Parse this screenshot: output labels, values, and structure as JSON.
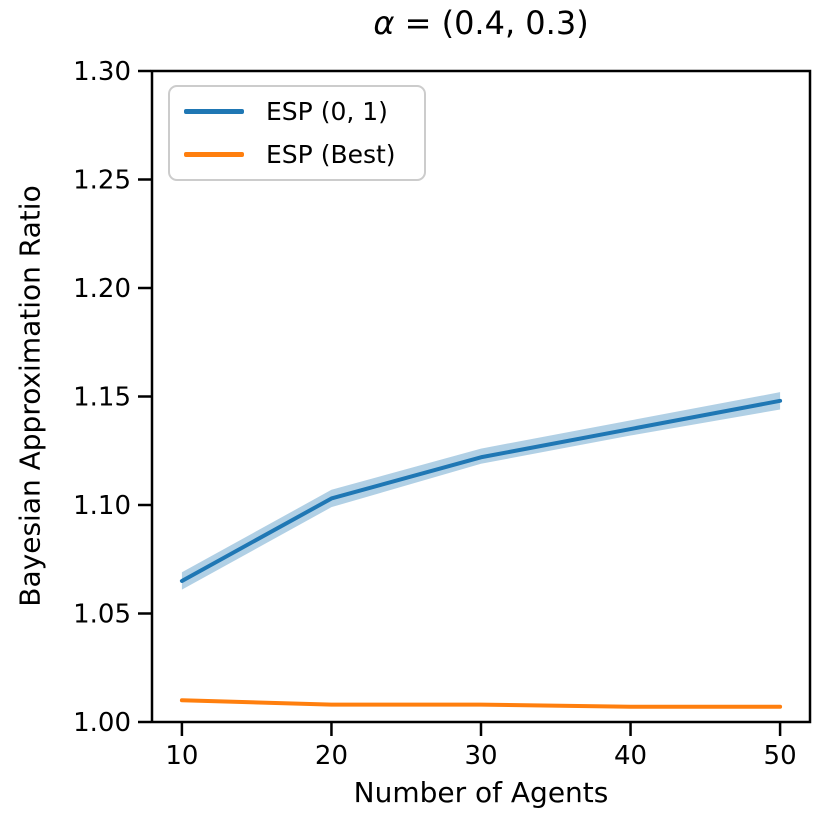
{
  "figure": {
    "background": "#ffffff"
  },
  "colors": {
    "axis": "#000000",
    "tick_label": "#000000",
    "series_blue": "#1f77b4",
    "series_orange": "#ff7f0e",
    "band_blue": "#1f77b4",
    "legend_border": "#cccccc",
    "legend_background": "#ffffff"
  },
  "chart_data": {
    "type": "line",
    "title": "α = (0.4, 0.3)",
    "title_math": "α",
    "title_rest": " = (0.4, 0.3)",
    "xlabel": "Number of Agents",
    "ylabel": "Bayesian Approximation Ratio",
    "x": [
      10,
      20,
      30,
      40,
      50
    ],
    "series": [
      {
        "name": "ESP (0, 1)",
        "color": "#1f77b4",
        "values": [
          1.065,
          1.103,
          1.122,
          1.135,
          1.148
        ],
        "band_lower": [
          1.061,
          1.099,
          1.119,
          1.132,
          1.144
        ],
        "band_upper": [
          1.069,
          1.107,
          1.126,
          1.139,
          1.152
        ],
        "band_opacity": 0.35
      },
      {
        "name": "ESP (Best)",
        "color": "#ff7f0e",
        "values": [
          1.01,
          1.008,
          1.008,
          1.007,
          1.007
        ]
      }
    ],
    "xlim": [
      8,
      52
    ],
    "ylim": [
      1.0,
      1.3
    ],
    "xticks": [
      "10",
      "20",
      "30",
      "40",
      "50"
    ],
    "xtick_values": [
      10,
      20,
      30,
      40,
      50
    ],
    "yticks": [
      "1.00",
      "1.05",
      "1.10",
      "1.15",
      "1.20",
      "1.25",
      "1.30"
    ],
    "ytick_values": [
      1.0,
      1.05,
      1.1,
      1.15,
      1.2,
      1.25,
      1.3
    ],
    "legend_position": "upper left",
    "grid": false
  }
}
